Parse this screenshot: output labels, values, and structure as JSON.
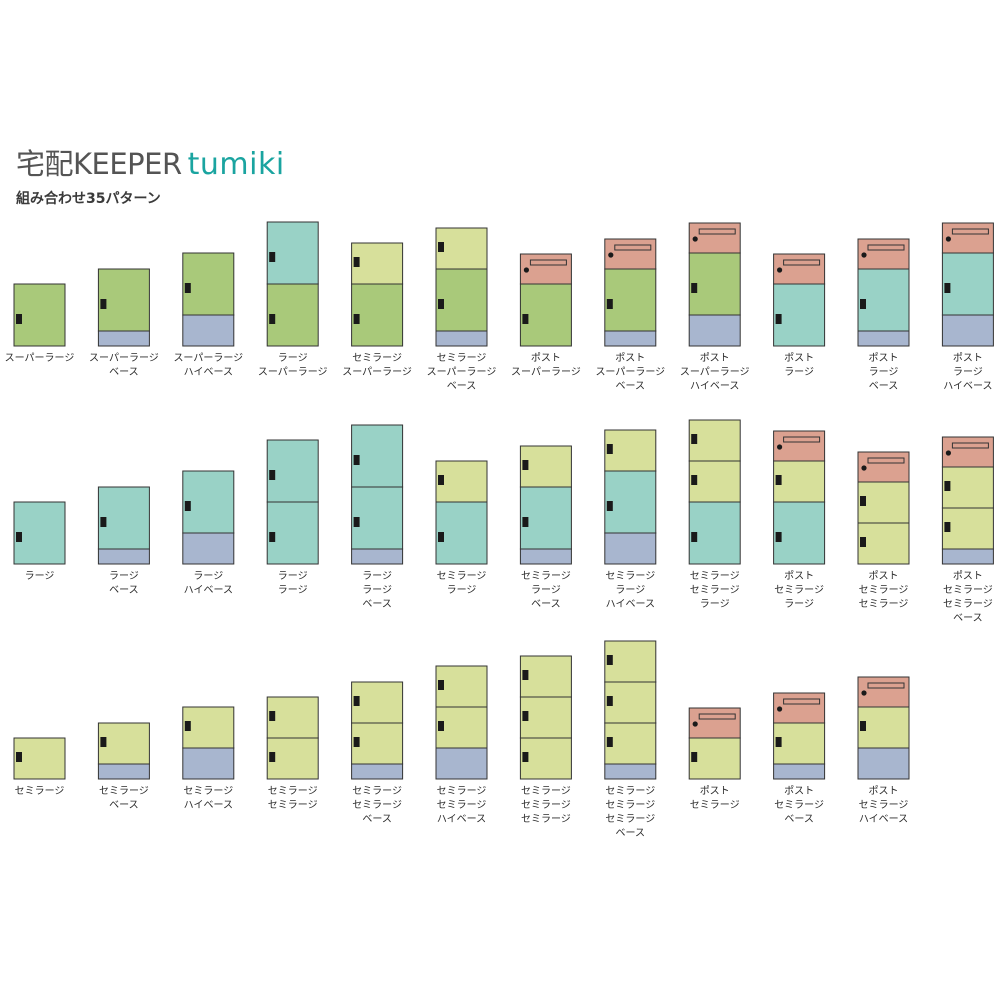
{
  "title": {
    "brand": "宅配KEEPER",
    "product": "tumiki"
  },
  "subtitle": "組み合わせ35パターン",
  "colors": {
    "super_large": "#a9c97a",
    "large": "#99d2c6",
    "semi_large": "#d7e09b",
    "post": "#dba190",
    "base": "#a8b6cf",
    "outline": "#333333",
    "handle": "#1a1a1a"
  },
  "patterns": [
    {
      "modules": [
        "super_large"
      ],
      "base": "none",
      "lines": [
        "スーパーラージ"
      ]
    },
    {
      "modules": [
        "super_large"
      ],
      "base": "base",
      "lines": [
        "スーパーラージ",
        "ベース"
      ]
    },
    {
      "modules": [
        "super_large"
      ],
      "base": "high",
      "lines": [
        "スーパーラージ",
        "ハイベース"
      ]
    },
    {
      "modules": [
        "large",
        "super_large"
      ],
      "base": "none",
      "lines": [
        "ラージ",
        "スーパーラージ"
      ]
    },
    {
      "modules": [
        "semi_large",
        "super_large"
      ],
      "base": "none",
      "lines": [
        "セミラージ",
        "スーパーラージ"
      ]
    },
    {
      "modules": [
        "semi_large",
        "super_large"
      ],
      "base": "base",
      "lines": [
        "セミラージ",
        "スーパーラージ",
        "ベース"
      ]
    },
    {
      "modules": [
        "post",
        "super_large"
      ],
      "base": "none",
      "lines": [
        "ポスト",
        "スーパーラージ"
      ]
    },
    {
      "modules": [
        "post",
        "super_large"
      ],
      "base": "base",
      "lines": [
        "ポスト",
        "スーパーラージ",
        "ベース"
      ]
    },
    {
      "modules": [
        "post",
        "super_large"
      ],
      "base": "high",
      "lines": [
        "ポスト",
        "スーパーラージ",
        "ハイベース"
      ]
    },
    {
      "modules": [
        "post",
        "large"
      ],
      "base": "none",
      "lines": [
        "ポスト",
        "ラージ"
      ]
    },
    {
      "modules": [
        "post",
        "large"
      ],
      "base": "base",
      "lines": [
        "ポスト",
        "ラージ",
        "ベース"
      ]
    },
    {
      "modules": [
        "post",
        "large"
      ],
      "base": "high",
      "lines": [
        "ポスト",
        "ラージ",
        "ハイベース"
      ]
    },
    {
      "modules": [
        "large"
      ],
      "base": "none",
      "lines": [
        "ラージ"
      ]
    },
    {
      "modules": [
        "large"
      ],
      "base": "base",
      "lines": [
        "ラージ",
        "ベース"
      ]
    },
    {
      "modules": [
        "large"
      ],
      "base": "high",
      "lines": [
        "ラージ",
        "ハイベース"
      ]
    },
    {
      "modules": [
        "large",
        "large"
      ],
      "base": "none",
      "lines": [
        "ラージ",
        "ラージ"
      ]
    },
    {
      "modules": [
        "large",
        "large"
      ],
      "base": "base",
      "lines": [
        "ラージ",
        "ラージ",
        "ベース"
      ]
    },
    {
      "modules": [
        "semi_large",
        "large"
      ],
      "base": "none",
      "lines": [
        "セミラージ",
        "ラージ"
      ]
    },
    {
      "modules": [
        "semi_large",
        "large"
      ],
      "base": "base",
      "lines": [
        "セミラージ",
        "ラージ",
        "ベース"
      ]
    },
    {
      "modules": [
        "semi_large",
        "large"
      ],
      "base": "high",
      "lines": [
        "セミラージ",
        "ラージ",
        "ハイベース"
      ]
    },
    {
      "modules": [
        "semi_large",
        "semi_large",
        "large"
      ],
      "base": "none",
      "lines": [
        "セミラージ",
        "セミラージ",
        "ラージ"
      ]
    },
    {
      "modules": [
        "post",
        "semi_large",
        "large"
      ],
      "base": "none",
      "lines": [
        "ポスト",
        "セミラージ",
        "ラージ"
      ]
    },
    {
      "modules": [
        "post",
        "semi_large",
        "semi_large"
      ],
      "base": "none",
      "lines": [
        "ポスト",
        "セミラージ",
        "セミラージ"
      ]
    },
    {
      "modules": [
        "post",
        "semi_large",
        "semi_large"
      ],
      "base": "base",
      "lines": [
        "ポスト",
        "セミラージ",
        "セミラージ",
        "ベース"
      ]
    },
    {
      "modules": [
        "semi_large"
      ],
      "base": "none",
      "lines": [
        "セミラージ"
      ]
    },
    {
      "modules": [
        "semi_large"
      ],
      "base": "base",
      "lines": [
        "セミラージ",
        "ベース"
      ]
    },
    {
      "modules": [
        "semi_large"
      ],
      "base": "high",
      "lines": [
        "セミラージ",
        "ハイベース"
      ]
    },
    {
      "modules": [
        "semi_large",
        "semi_large"
      ],
      "base": "none",
      "lines": [
        "セミラージ",
        "セミラージ"
      ]
    },
    {
      "modules": [
        "semi_large",
        "semi_large"
      ],
      "base": "base",
      "lines": [
        "セミラージ",
        "セミラージ",
        "ベース"
      ]
    },
    {
      "modules": [
        "semi_large",
        "semi_large"
      ],
      "base": "high",
      "lines": [
        "セミラージ",
        "セミラージ",
        "ハイベース"
      ]
    },
    {
      "modules": [
        "semi_large",
        "semi_large",
        "semi_large"
      ],
      "base": "none",
      "lines": [
        "セミラージ",
        "セミラージ",
        "セミラージ"
      ]
    },
    {
      "modules": [
        "semi_large",
        "semi_large",
        "semi_large"
      ],
      "base": "base",
      "lines": [
        "セミラージ",
        "セミラージ",
        "セミラージ",
        "ベース"
      ]
    },
    {
      "modules": [
        "post",
        "semi_large"
      ],
      "base": "none",
      "lines": [
        "ポスト",
        "セミラージ"
      ]
    },
    {
      "modules": [
        "post",
        "semi_large"
      ],
      "base": "base",
      "lines": [
        "ポスト",
        "セミラージ",
        "ベース"
      ]
    },
    {
      "modules": [
        "post",
        "semi_large"
      ],
      "base": "high",
      "lines": [
        "ポスト",
        "セミラージ",
        "ハイベース"
      ]
    }
  ]
}
